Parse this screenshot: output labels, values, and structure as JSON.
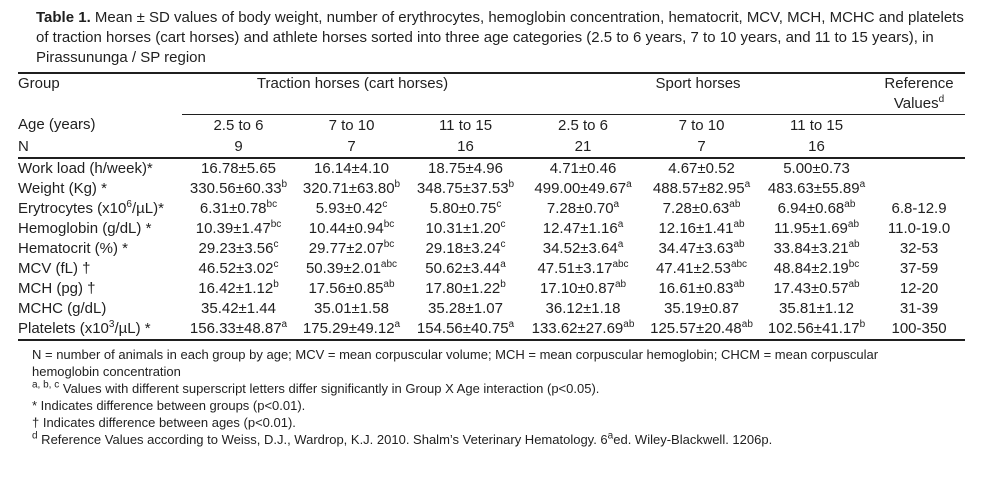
{
  "caption": {
    "label": "Table 1.",
    "text": " Mean ± SD values of body weight, number of erythrocytes, hemoglobin concentration, hematocrit, MCV, MCH, MCHC and platelets of traction horses (cart horses) and athlete horses sorted into three age categories (2.5 to 6 years, 7 to 10 years, and 11 to 15 years), in Pirassununga / SP region"
  },
  "table": {
    "group_header": {
      "row_label": "Group",
      "traction": "Traction horses (cart horses)",
      "sport": "Sport horses",
      "reference": "Reference Values^{d}"
    },
    "age_header": {
      "row_label": "Age (years)",
      "values": [
        "2.5 to 6",
        "7 to 10",
        "11 to 15",
        "2.5 to 6",
        "7 to 10",
        "11 to 15"
      ]
    },
    "n_header": {
      "row_label": "N",
      "values": [
        "9",
        "7",
        "16",
        "21",
        "7",
        "16"
      ]
    },
    "rows": [
      {
        "label": "Work load (h/week)*",
        "values": [
          "16.78±5.65",
          "16.14±4.10",
          "18.75±4.96",
          "4.71±0.46",
          "4.67±0.52",
          "5.00±0.73"
        ],
        "reference": ""
      },
      {
        "label": "Weight (Kg) *",
        "values": [
          "330.56±60.33^{b}",
          "320.71±63.80^{b}",
          "348.75±37.53^{b}",
          "499.00±49.67^{a}",
          "488.57±82.95^{a}",
          "483.63±55.89^{a}"
        ],
        "reference": ""
      },
      {
        "label": "Erytrocytes (x10^{6}/µL)*",
        "values": [
          "6.31±0.78^{bc}",
          "5.93±0.42^{c}",
          "5.80±0.75^{c}",
          "7.28±0.70^{a}",
          "7.28±0.63^{ab}",
          "6.94±0.68^{ab}"
        ],
        "reference": "6.8-12.9"
      },
      {
        "label": "Hemoglobin (g/dL) *",
        "values": [
          "10.39±1.47^{bc}",
          "10.44±0.94^{bc}",
          "10.31±1.20^{c}",
          "12.47±1.16^{a}",
          "12.16±1.41^{ab}",
          "11.95±1.69^{ab}"
        ],
        "reference": "11.0-19.0"
      },
      {
        "label": "Hematocrit (%) *",
        "values": [
          "29.23±3.56^{c}",
          "29.77±2.07^{bc}",
          "29.18±3.24^{c}",
          "34.52±3.64^{a}",
          "34.47±3.63^{ab}",
          "33.84±3.21^{ab}"
        ],
        "reference": "32-53"
      },
      {
        "label": "MCV (fL) †",
        "values": [
          "46.52±3.02^{c}",
          "50.39±2.01^{abc}",
          "50.62±3.44^{a}",
          "47.51±3.17^{abc}",
          "47.41±2.53^{abc}",
          "48.84±2.19^{bc}"
        ],
        "reference": "37-59"
      },
      {
        "label": "MCH (pg) †",
        "values": [
          "16.42±1.12^{b}",
          "17.56±0.85^{ab}",
          "17.80±1.22^{b}",
          "17.10±0.87^{ab}",
          "16.61±0.83^{ab}",
          "17.43±0.57^{ab}"
        ],
        "reference": "12-20"
      },
      {
        "label": "MCHC (g/dL)",
        "values": [
          "35.42±1.44",
          "35.01±1.58",
          "35.28±1.07",
          "36.12±1.18",
          "35.19±0.87",
          "35.81±1.12"
        ],
        "reference": "31-39"
      },
      {
        "label": "Platelets (x10^{3}/µL) *",
        "values": [
          "156.33±48.87^{a}",
          "175.29±49.12^{a}",
          "154.56±40.75^{a}",
          "133.62±27.69^{ab}",
          "125.57±20.48^{ab}",
          "102.56±41.17^{b}"
        ],
        "reference": "100-350"
      }
    ]
  },
  "footnotes": [
    "N = number of animals in each group by age; MCV = mean corpuscular volume; MCH = mean corpuscular hemoglobin; CHCM = mean corpuscular hemoglobin concentration",
    "^{a, b, c} Values with different superscript letters differ significantly in Group X Age interaction (p<0.05).",
    "* Indicates difference between groups (p<0.01).",
    "† Indicates difference between ages (p<0.01).",
    "^{d} Reference Values according to Weiss, D.J., Wardrop, K.J. 2010. Shalm’s Veterinary Hematology. 6^{a}ed. Wiley-Blackwell. 1206p."
  ]
}
